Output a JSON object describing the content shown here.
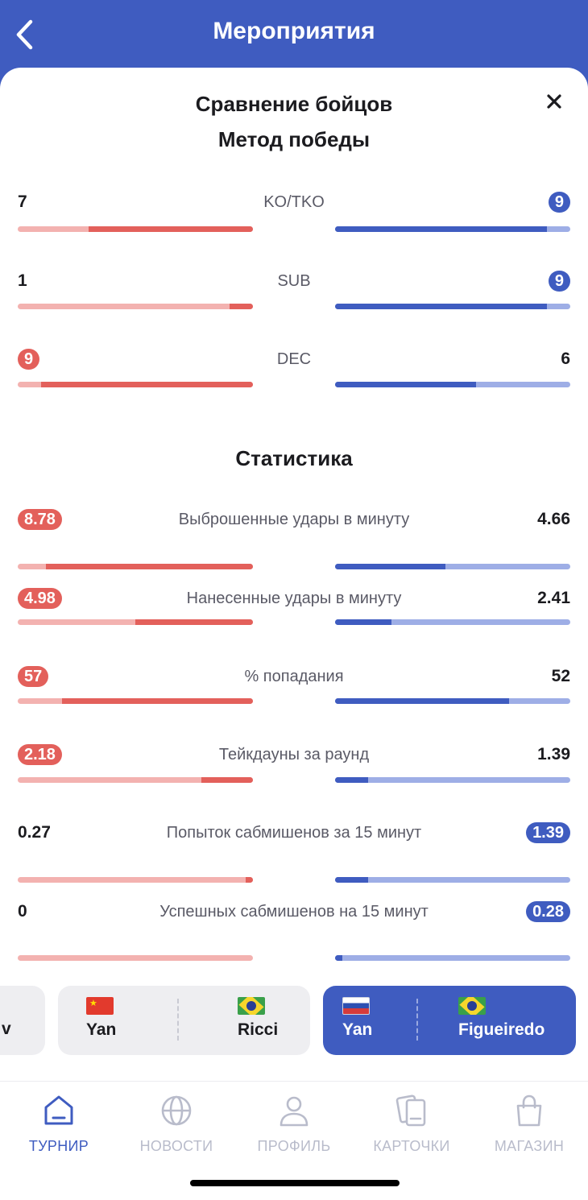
{
  "header": {
    "title": "Мероприятия"
  },
  "sheet": {
    "title": "Сравнение бойцов",
    "method_title": "Метод победы",
    "stats_title": "Статистика"
  },
  "method_rows": [
    {
      "label": "KO/TKO",
      "left": "7",
      "right": "9",
      "left_highlight": false,
      "right_highlight": true,
      "left_ratio": 0.7,
      "right_ratio": 0.9
    },
    {
      "label": "SUB",
      "left": "1",
      "right": "9",
      "left_highlight": false,
      "right_highlight": true,
      "left_ratio": 0.1,
      "right_ratio": 0.9
    },
    {
      "label": "DEC",
      "left": "9",
      "right": "6",
      "left_highlight": true,
      "right_highlight": false,
      "left_ratio": 0.9,
      "right_ratio": 0.6
    }
  ],
  "stat_rows": [
    {
      "label": "Выброшенные удары в минуту",
      "left": "8.78",
      "right": "4.66",
      "left_highlight": true,
      "right_highlight": false,
      "left_ratio": 0.88,
      "right_ratio": 0.47
    },
    {
      "label": "Нанесенные удары в минуту",
      "left": "4.98",
      "right": "2.41",
      "left_highlight": true,
      "right_highlight": false,
      "left_ratio": 0.5,
      "right_ratio": 0.24
    },
    {
      "label": "% попадания",
      "left": "57",
      "right": "52",
      "left_highlight": true,
      "right_highlight": false,
      "left_ratio": 0.81,
      "right_ratio": 0.74
    },
    {
      "label": "Тейкдауны за раунд",
      "left": "2.18",
      "right": "1.39",
      "left_highlight": true,
      "right_highlight": false,
      "left_ratio": 0.22,
      "right_ratio": 0.14
    },
    {
      "label": "Попыток сабмишенов за 15 минут",
      "left": "0.27",
      "right": "1.39",
      "left_highlight": false,
      "right_highlight": true,
      "left_ratio": 0.03,
      "right_ratio": 0.14
    },
    {
      "label": "Успешных сабмишенов на 15 минут",
      "left": "0",
      "right": "0.28",
      "left_highlight": false,
      "right_highlight": true,
      "left_ratio": 0.0,
      "right_ratio": 0.03
    }
  ],
  "fights": {
    "partial_card_text": "v",
    "cards": [
      {
        "fighter1": "Yan",
        "fighter2": "Ricci",
        "flag1": "china-flag-icon",
        "flag2": "brazil-flag-icon",
        "active": false
      },
      {
        "fighter1": "Yan",
        "fighter2": "Figueiredo",
        "flag1": "russia-flag-icon",
        "flag2": "brazil-flag-icon",
        "active": true
      }
    ]
  },
  "tabbar": {
    "tabs": [
      {
        "label": "ТУРНИР",
        "icon": "tournament-icon",
        "active": true
      },
      {
        "label": "НОВОСТИ",
        "icon": "globe-icon",
        "active": false
      },
      {
        "label": "ПРОФИЛЬ",
        "icon": "profile-icon",
        "active": false
      },
      {
        "label": "КАРТОЧКИ",
        "icon": "cards-icon",
        "active": false
      },
      {
        "label": "МАГАЗИН",
        "icon": "shopping-bag-icon",
        "active": false
      }
    ]
  },
  "colors": {
    "accent": "#3f5cc0",
    "red": "#e3605b",
    "red_light": "#f3b2b0",
    "blue_light": "#9eaee6"
  }
}
